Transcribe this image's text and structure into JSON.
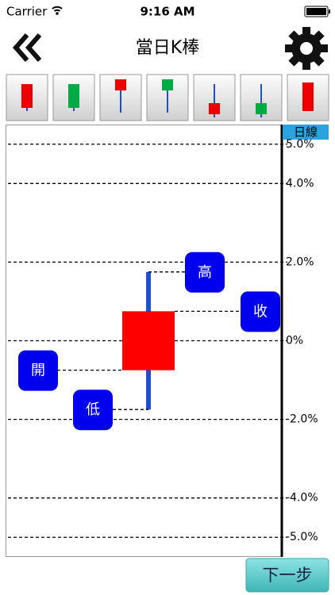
{
  "status_bar": {
    "carrier": "Carrier",
    "time": "9:16 AM"
  },
  "nav": {
    "title": "當日K棒"
  },
  "chart_data": {
    "type": "candlestick",
    "timeframe_label": "日線",
    "ohlc": {
      "open": -0.75,
      "high": 1.75,
      "low": -1.75,
      "close": 0.75
    },
    "ohlc_labels": {
      "open": "開",
      "high": "高",
      "low": "低",
      "close": "收"
    },
    "up_color": "#ff0000",
    "wick_color": "#1f4fd0",
    "label_color": "#0000ee",
    "ylim": [
      -5.5,
      5.5
    ],
    "yticks": [
      {
        "value": 5,
        "label": "5.0%"
      },
      {
        "value": 4,
        "label": "4.0%"
      },
      {
        "value": 2,
        "label": "2.0%"
      },
      {
        "value": 0,
        "label": "0%"
      },
      {
        "value": -2,
        "label": "-2.0%"
      },
      {
        "value": -4,
        "label": "-4.0%"
      },
      {
        "value": -5,
        "label": "-5.0%"
      }
    ],
    "grid": true
  },
  "button": {
    "label": "下一步"
  }
}
